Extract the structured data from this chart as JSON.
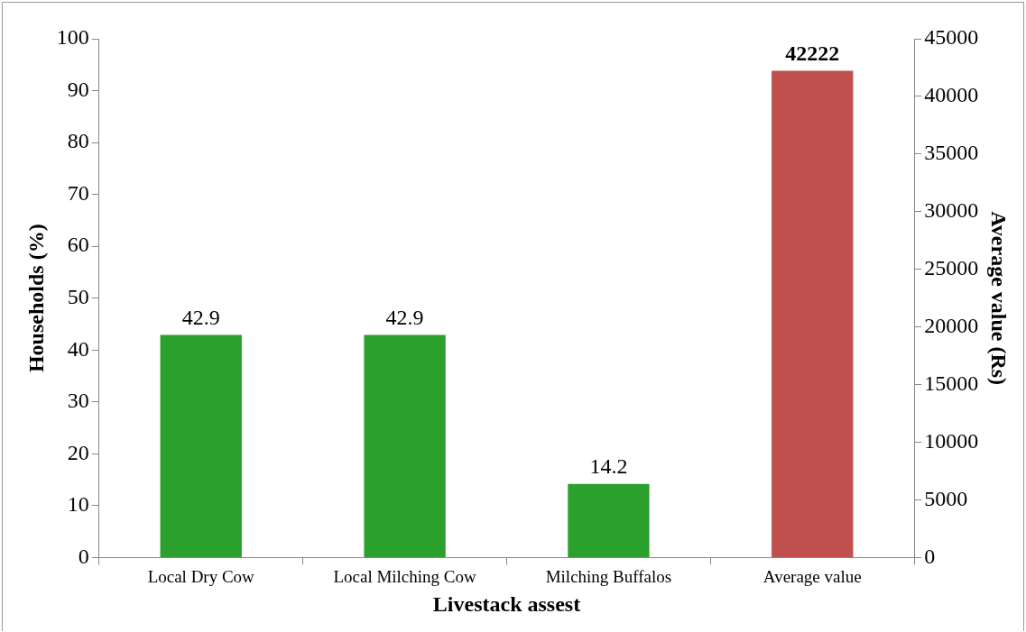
{
  "chart_data": {
    "type": "bar",
    "xlabel": "Livestack assest",
    "ylabel": "Households (%)",
    "y2label": "Average value (Rs)",
    "categories": [
      "Local Dry Cow",
      "Local Milching Cow",
      "Milching Buffalos",
      "Average value"
    ],
    "series": [
      {
        "color": "#2ca02c",
        "values": [
          42.9,
          42.9,
          14.2,
          null
        ]
      },
      {
        "color": "#c0504d",
        "values": [
          null,
          null,
          null,
          42222
        ],
        "axis": "y2"
      }
    ],
    "ylim": [
      0,
      100
    ],
    "yticks": [
      0,
      10,
      20,
      30,
      40,
      50,
      60,
      70,
      80,
      90,
      100
    ],
    "y2lim": [
      0,
      45000
    ],
    "y2ticks": [
      0,
      5000,
      10000,
      15000,
      20000,
      25000,
      30000,
      35000,
      40000,
      45000
    ],
    "data_labels": true,
    "grid": false,
    "legend": false
  }
}
